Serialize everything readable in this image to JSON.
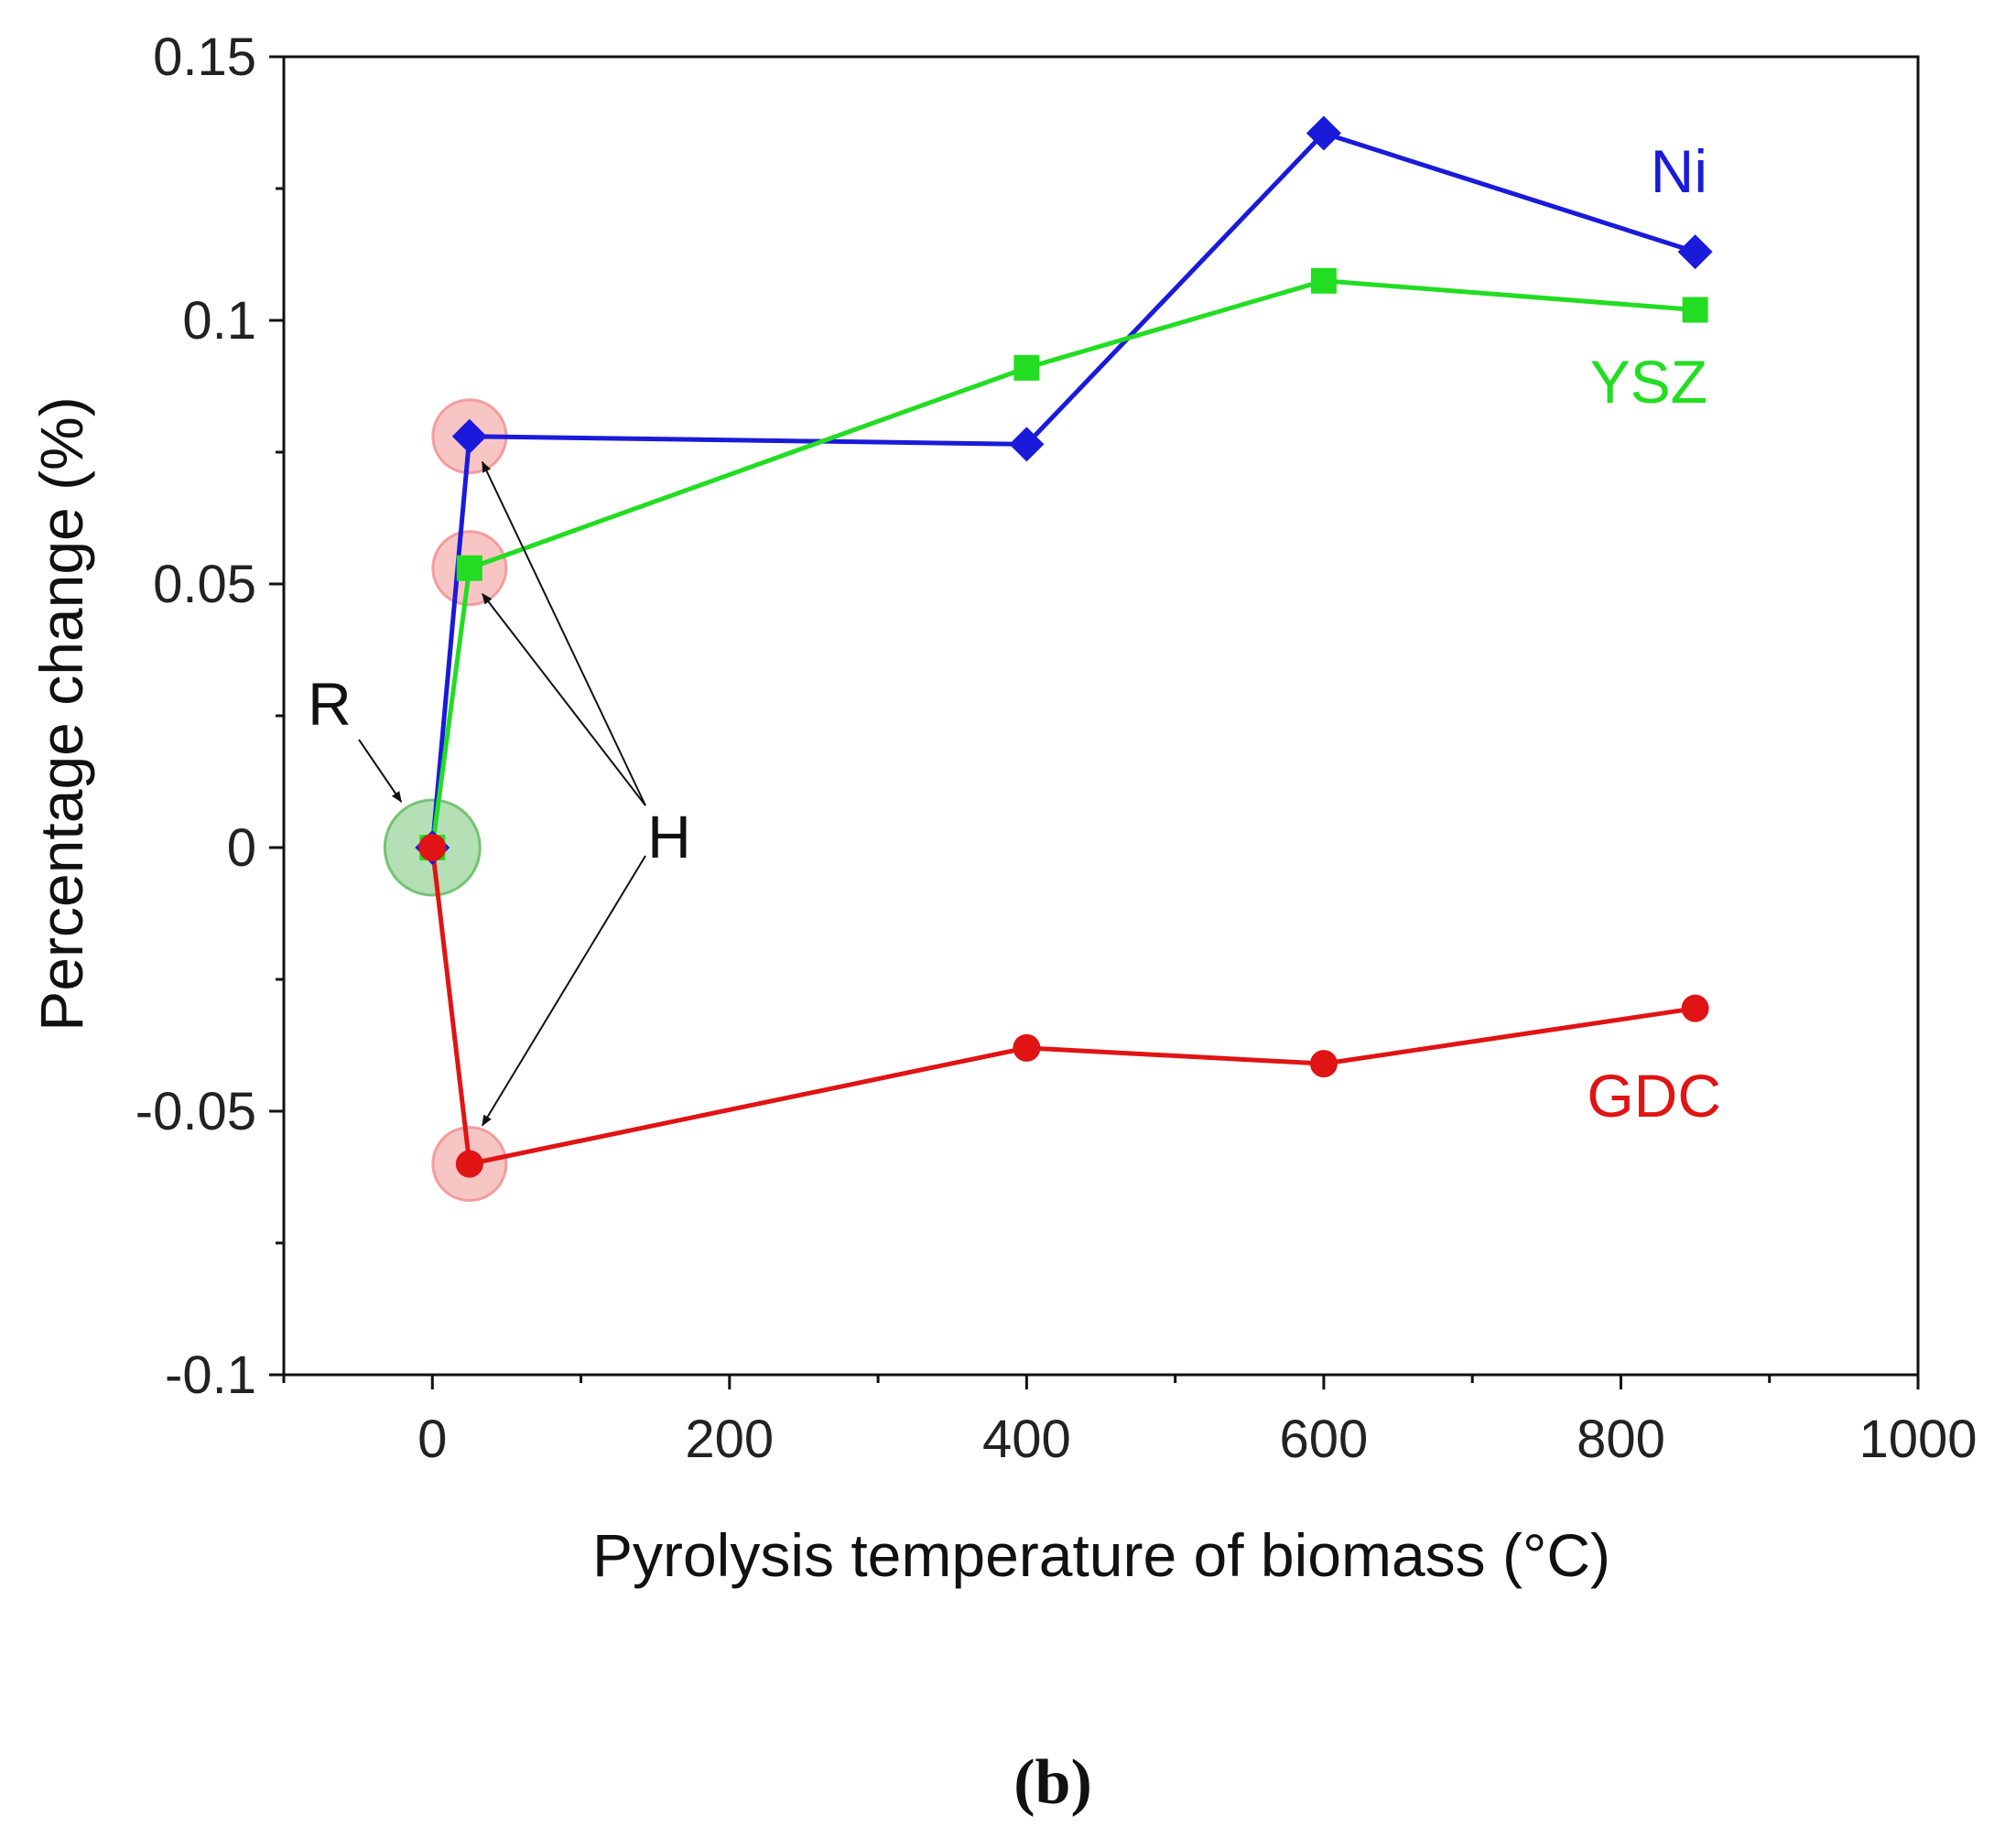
{
  "chart_data": {
    "type": "line",
    "title": "",
    "panel_label": "(b)",
    "xlabel": "Pyrolysis temperature of biomass (°C)",
    "ylabel": "Percentage change (%)",
    "xlim": [
      -100,
      1000
    ],
    "ylim": [
      -0.1,
      0.15
    ],
    "xticks": [
      0,
      200,
      400,
      600,
      800,
      1000
    ],
    "xtick_labels": [
      "0",
      "200",
      "400",
      "600",
      "800",
      "1000"
    ],
    "x_minor_ticks": [
      -100,
      100,
      300,
      500,
      700,
      900
    ],
    "yticks": [
      -0.1,
      -0.05,
      0,
      0.05,
      0.1,
      0.15
    ],
    "ytick_labels": [
      "-0.1",
      "-0.05",
      "0",
      "0.05",
      "0.1",
      "0.15"
    ],
    "y_minor_ticks": [
      -0.075,
      -0.025,
      0.025,
      0.075,
      0.125
    ],
    "grid": false,
    "legend": "inline labels at right",
    "series": [
      {
        "name": "Ni",
        "color": "#1a1adb",
        "marker": "diamond",
        "x": [
          0,
          25,
          400,
          600,
          850
        ],
        "y": [
          0,
          0.078,
          0.0765,
          0.1355,
          0.113
        ]
      },
      {
        "name": "YSZ",
        "color": "#22dd22",
        "marker": "square",
        "x": [
          0,
          25,
          400,
          600,
          850
        ],
        "y": [
          0,
          0.053,
          0.091,
          0.1075,
          0.102
        ]
      },
      {
        "name": "GDC",
        "color": "#e01414",
        "marker": "circle",
        "x": [
          0,
          25,
          400,
          600,
          850
        ],
        "y": [
          0,
          -0.06,
          -0.038,
          -0.041,
          -0.0305
        ]
      }
    ],
    "highlights": [
      {
        "name": "R",
        "color": "#5cb85c",
        "x": 0,
        "y": 0
      },
      {
        "name": "H",
        "color": "#f28b8b",
        "x": 25,
        "y": 0.078
      },
      {
        "name": "H",
        "color": "#f28b8b",
        "x": 25,
        "y": 0.053
      },
      {
        "name": "H",
        "color": "#f28b8b",
        "x": 25,
        "y": -0.06
      }
    ],
    "annotations": [
      {
        "text": "R",
        "points_to": [
          {
            "x": 0,
            "y": 0
          }
        ]
      },
      {
        "text": "H",
        "points_to": [
          {
            "x": 25,
            "y": 0.078
          },
          {
            "x": 25,
            "y": 0.053
          },
          {
            "x": 25,
            "y": -0.06
          }
        ]
      }
    ]
  }
}
